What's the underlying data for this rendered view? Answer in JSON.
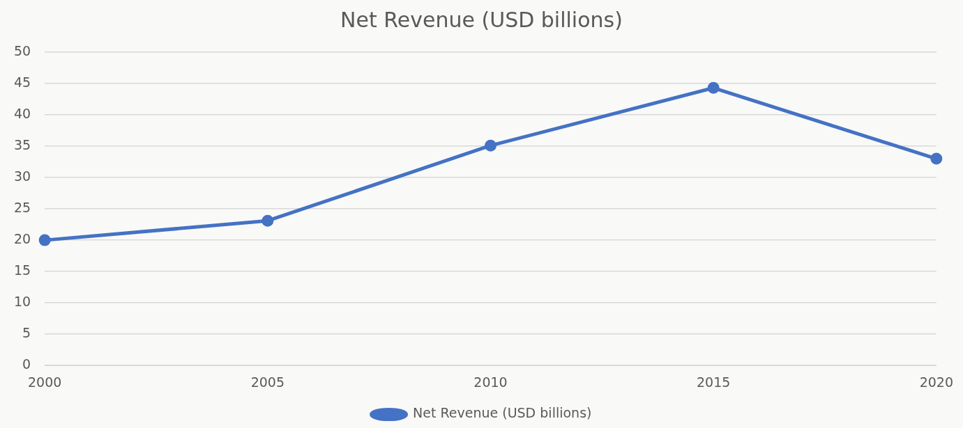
{
  "chart_data": {
    "type": "line",
    "title": "Net Revenue (USD billions)",
    "categories": [
      "2000",
      "2005",
      "2010",
      "2015",
      "2020"
    ],
    "series": [
      {
        "name": "Net Revenue (USD billions)",
        "color": "#4472c4",
        "values": [
          20,
          23.1,
          35.1,
          44.3,
          33.0
        ]
      }
    ],
    "ylim": [
      0,
      50
    ],
    "yticks": [
      0,
      5,
      10,
      15,
      20,
      25,
      30,
      35,
      40,
      45,
      50
    ],
    "grid": "y",
    "legend": "bottom",
    "marker": "circle",
    "line_style": "solid"
  }
}
